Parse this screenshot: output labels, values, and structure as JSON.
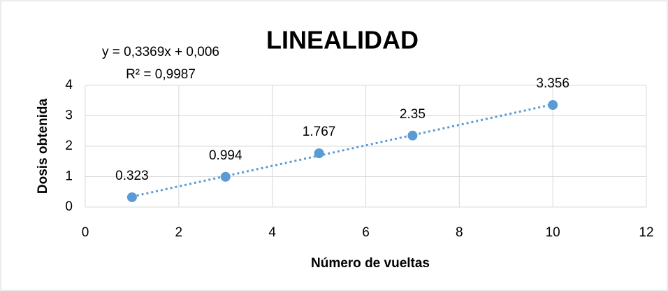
{
  "chart_data": {
    "type": "scatter",
    "title": "LINEALIDAD",
    "x_label": "Número de vueltas",
    "y_label": "Dosis obtenida",
    "series": [
      {
        "name": "Dosis obtenida",
        "color": "#5b9bd5",
        "x": [
          1,
          3,
          5,
          7,
          10
        ],
        "values": [
          0.323,
          0.994,
          1.767,
          2.35,
          3.356
        ]
      }
    ],
    "trendline": {
      "equation": "y = 0,3369x + 0,006",
      "r2_label": "R² = 0,9987",
      "slope": 0.3369,
      "intercept": 0.006
    },
    "xlim": [
      0,
      12
    ],
    "xticks": [
      0,
      2,
      4,
      6,
      8,
      10,
      12
    ],
    "ylim": [
      0,
      4
    ],
    "yticks": [
      0,
      1,
      2,
      3,
      4
    ],
    "grid": true
  }
}
